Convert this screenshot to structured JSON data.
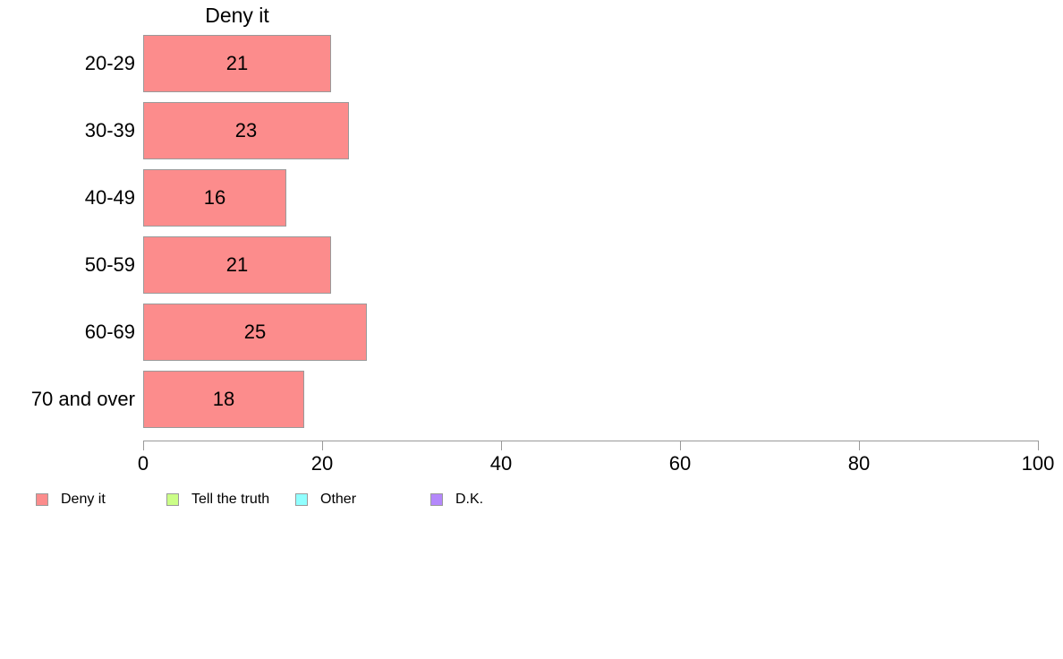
{
  "chart_data": {
    "type": "bar",
    "orientation": "horizontal",
    "title": "Deny it",
    "categories": [
      "20-29",
      "30-39",
      "40-49",
      "50-59",
      "60-69",
      "70 and over"
    ],
    "values": [
      21,
      23,
      16,
      21,
      25,
      18
    ],
    "xlabel": "",
    "ylabel": "",
    "xlim": [
      0,
      100
    ],
    "xticks": [
      0,
      20,
      40,
      60,
      80,
      100
    ],
    "grid": false,
    "bar_color": "#FC8C8C",
    "bar_border_color": "#9A9A9A",
    "axis_color": "#9A9A9A",
    "text_color": "#000000",
    "legend": {
      "position": "bottom-left",
      "items": [
        {
          "label": "Deny it",
          "color": "#FC8C8C"
        },
        {
          "label": "Tell the truth",
          "color": "#CBFE87"
        },
        {
          "label": "Other",
          "color": "#90FFFF"
        },
        {
          "label": "D.K.",
          "color": "#B488FB"
        }
      ]
    }
  }
}
